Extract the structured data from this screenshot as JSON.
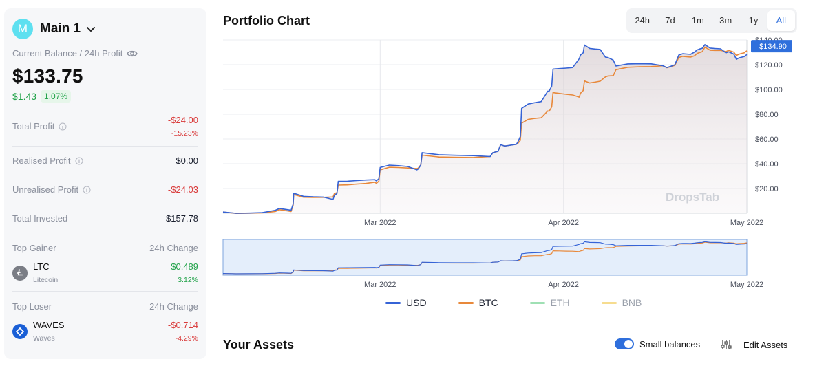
{
  "account": {
    "avatar_letter": "M",
    "name": "Main 1"
  },
  "balance": {
    "label": "Current Balance / 24h Profit",
    "value": "$133.75",
    "profit_abs": "$1.43",
    "profit_pct": "1.07%"
  },
  "stats": {
    "total_profit": {
      "label": "Total Profit",
      "value": "-$24.00",
      "sub": "-15.23%"
    },
    "realised_profit": {
      "label": "Realised Profit",
      "value": "$0.00"
    },
    "unrealised_profit": {
      "label": "Unrealised Profit",
      "value": "-$24.03"
    },
    "total_invested": {
      "label": "Total Invested",
      "value": "$157.78"
    }
  },
  "top_gainer": {
    "label": "Top Gainer",
    "change_label": "24h Change",
    "symbol": "LTC",
    "name": "Litecoin",
    "value": "$0.489",
    "pct": "3.12%"
  },
  "top_loser": {
    "label": "Top Loser",
    "change_label": "24h Change",
    "symbol": "WAVES",
    "name": "Waves",
    "value": "-$0.714",
    "pct": "-4.29%"
  },
  "chart_header": {
    "title": "Portfolio Chart",
    "ranges": [
      "24h",
      "7d",
      "1m",
      "3m",
      "1y",
      "All"
    ],
    "active_range": "All"
  },
  "chart_data": {
    "type": "line",
    "watermark": "DropsTab",
    "y_ticks": [
      "$140.00",
      "$120.00",
      "$100.00",
      "$80.00",
      "$60.00",
      "$40.00",
      "$20.00"
    ],
    "ylim": [
      0,
      140
    ],
    "x_ticks": [
      {
        "label": "Mar 2022",
        "at": 0.3
      },
      {
        "label": "Apr 2022",
        "at": 0.65
      },
      {
        "label": "May 2022",
        "at": 1.0
      }
    ],
    "current_value_label": "$134.90",
    "current_value": 134.9,
    "series": [
      {
        "name": "USD",
        "color": "#3563d6",
        "points": [
          [
            0,
            1
          ],
          [
            0.1,
            3
          ],
          [
            0.13,
            3
          ],
          [
            0.135,
            15
          ],
          [
            0.21,
            12
          ],
          [
            0.22,
            26
          ],
          [
            0.29,
            26
          ],
          [
            0.3,
            38
          ],
          [
            0.37,
            35
          ],
          [
            0.38,
            48
          ],
          [
            0.51,
            47
          ],
          [
            0.53,
            55
          ],
          [
            0.56,
            55
          ],
          [
            0.57,
            86
          ],
          [
            0.62,
            98
          ],
          [
            0.63,
            116
          ],
          [
            0.68,
            126
          ],
          [
            0.69,
            135
          ],
          [
            0.73,
            126
          ],
          [
            0.75,
            120
          ],
          [
            0.84,
            118
          ],
          [
            0.87,
            128
          ],
          [
            0.9,
            131
          ],
          [
            0.92,
            135
          ],
          [
            0.96,
            130
          ],
          [
            0.98,
            125
          ],
          [
            1.0,
            127
          ]
        ]
      },
      {
        "name": "BTC",
        "color": "#e8883a",
        "points": [
          [
            0,
            1
          ],
          [
            0.1,
            2
          ],
          [
            0.13,
            2
          ],
          [
            0.135,
            14
          ],
          [
            0.21,
            14
          ],
          [
            0.22,
            23
          ],
          [
            0.29,
            24
          ],
          [
            0.3,
            36
          ],
          [
            0.37,
            36
          ],
          [
            0.38,
            46
          ],
          [
            0.51,
            47
          ],
          [
            0.53,
            55
          ],
          [
            0.56,
            55
          ],
          [
            0.57,
            74
          ],
          [
            0.62,
            82
          ],
          [
            0.63,
            97
          ],
          [
            0.68,
            95
          ],
          [
            0.69,
            106
          ],
          [
            0.73,
            110
          ],
          [
            0.75,
            117
          ],
          [
            0.84,
            118
          ],
          [
            0.87,
            126
          ],
          [
            0.9,
            128
          ],
          [
            0.92,
            133
          ],
          [
            0.96,
            131
          ],
          [
            0.98,
            128
          ],
          [
            1.0,
            130
          ]
        ]
      },
      {
        "name": "ETH",
        "color": "#9fe0b4",
        "points": []
      },
      {
        "name": "BNB",
        "color": "#f6dc8f",
        "points": []
      }
    ]
  },
  "assets": {
    "title": "Your Assets",
    "small_balances_label": "Small balances",
    "small_balances_on": true,
    "edit_label": "Edit Assets"
  }
}
